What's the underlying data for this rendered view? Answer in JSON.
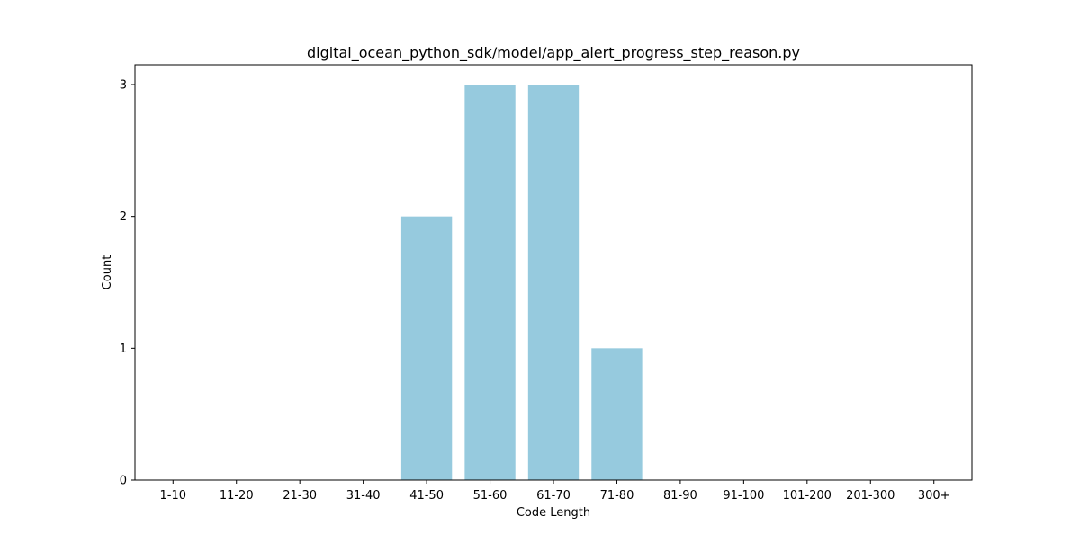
{
  "chart_data": {
    "type": "bar",
    "title": "digital_ocean_python_sdk/model/app_alert_progress_step_reason.py",
    "xlabel": "Code Length",
    "ylabel": "Count",
    "categories": [
      "1-10",
      "11-20",
      "21-30",
      "31-40",
      "41-50",
      "51-60",
      "61-70",
      "71-80",
      "81-90",
      "91-100",
      "101-200",
      "201-300",
      "300+"
    ],
    "values": [
      0,
      0,
      0,
      0,
      2,
      3,
      3,
      1,
      0,
      0,
      0,
      0,
      0
    ],
    "yticks": [
      0,
      1,
      2,
      3
    ],
    "ylim": [
      0,
      3.15
    ],
    "grid": false,
    "colors": {
      "bar": "#96cade",
      "axis": "#000000",
      "background": "#ffffff"
    }
  }
}
